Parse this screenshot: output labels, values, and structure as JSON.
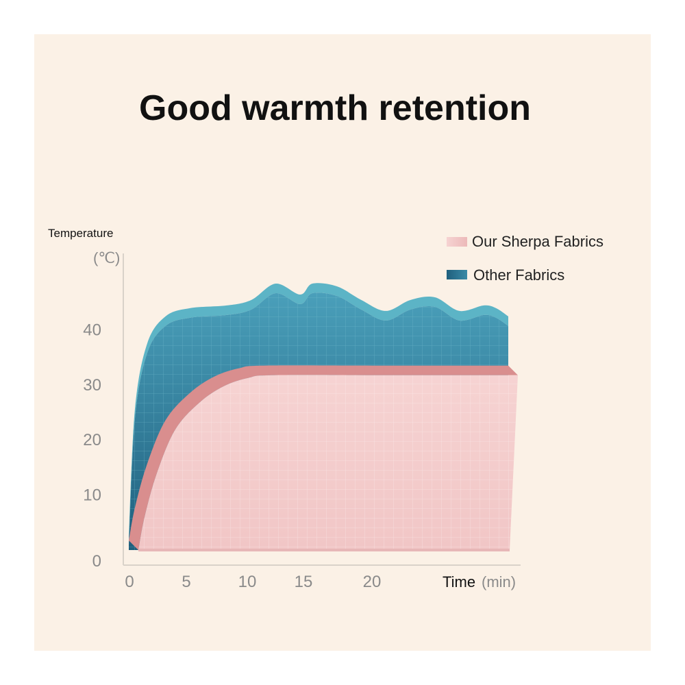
{
  "colors": {
    "background": "#fbf1e6",
    "sherpa": "#f3cfcf",
    "sherpa_edge": "#d98e8e",
    "other": "#3a8aa6",
    "other_edge": "#5cb4c6"
  },
  "chart_data": {
    "type": "area",
    "title": "Good warmth retention",
    "ylabel": "Temperature",
    "ylabel_unit": "(℃)",
    "xlabel": "Time",
    "xlabel_unit": "(min)",
    "x_ticks": [
      0,
      5,
      10,
      15,
      20
    ],
    "y_ticks": [
      0,
      10,
      20,
      30,
      40
    ],
    "xlim": [
      0,
      31
    ],
    "ylim": [
      0,
      46
    ],
    "legend_position": "top-right",
    "series": [
      {
        "name": "Other Fabrics",
        "color": "#3a8aa6",
        "points": [
          [
            0,
            1
          ],
          [
            0.5,
            24
          ],
          [
            1.5,
            36
          ],
          [
            3,
            41
          ],
          [
            5,
            42.5
          ],
          [
            8,
            43
          ],
          [
            10,
            44
          ],
          [
            12,
            47
          ],
          [
            14,
            45
          ],
          [
            15,
            47
          ],
          [
            17,
            46.5
          ],
          [
            19,
            44
          ],
          [
            21,
            42
          ],
          [
            23,
            44
          ],
          [
            25,
            44.5
          ],
          [
            27,
            42
          ],
          [
            29,
            43
          ],
          [
            30,
            42.5
          ],
          [
            31,
            41
          ]
        ]
      },
      {
        "name": "Our Sherpa Fabrics",
        "color": "#f3cfcf",
        "points": [
          [
            0,
            0
          ],
          [
            0.5,
            6
          ],
          [
            1.5,
            14
          ],
          [
            3,
            22
          ],
          [
            5,
            27
          ],
          [
            7,
            30
          ],
          [
            9,
            31.5
          ],
          [
            11,
            32
          ],
          [
            20,
            32
          ],
          [
            31,
            32
          ]
        ]
      }
    ]
  }
}
